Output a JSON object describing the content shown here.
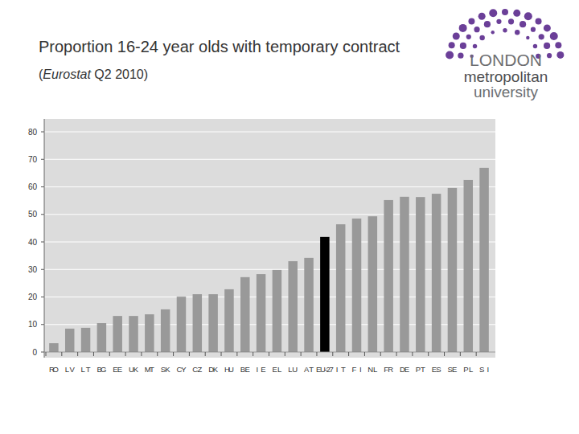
{
  "chart_data": {
    "type": "bar",
    "title": "Proportion 16-24 year olds with temporary contract",
    "subtitle": "(Eurostat Q2 2010)",
    "categories": [
      "RO",
      "LV",
      "LT",
      "BG",
      "EE",
      "UK",
      "MT",
      "SK",
      "CY",
      "CZ",
      "DK",
      "HU",
      "BE",
      "IE",
      "EL",
      "LU",
      "AT",
      "EU-27",
      "IT",
      "FI",
      "NL",
      "FR",
      "DE",
      "PT",
      "ES",
      "SE",
      "PL",
      "SI"
    ],
    "values": [
      3.2,
      8.5,
      8.8,
      10.5,
      13.1,
      13.1,
      13.7,
      15.5,
      20.1,
      21,
      21,
      22.8,
      27.2,
      28.3,
      29.8,
      33,
      34.2,
      41.8,
      46.4,
      48.5,
      49.3,
      55.2,
      56.4,
      56.3,
      57.5,
      59.6,
      62.5,
      66.9
    ],
    "colors": [
      "#999999",
      "#999999",
      "#999999",
      "#999999",
      "#999999",
      "#999999",
      "#999999",
      "#999999",
      "#999999",
      "#999999",
      "#999999",
      "#999999",
      "#999999",
      "#999999",
      "#999999",
      "#999999",
      "#999999",
      "#000000",
      "#999999",
      "#999999",
      "#999999",
      "#999999",
      "#999999",
      "#999999",
      "#999999",
      "#999999",
      "#999999",
      "#999999"
    ],
    "ylim": [
      0,
      80
    ],
    "yticks": [
      0,
      10,
      20,
      30,
      40,
      50,
      60,
      70,
      80
    ],
    "grid": true
  },
  "logo": {
    "lines": [
      "LONDON",
      "metropolitan",
      "university"
    ]
  }
}
